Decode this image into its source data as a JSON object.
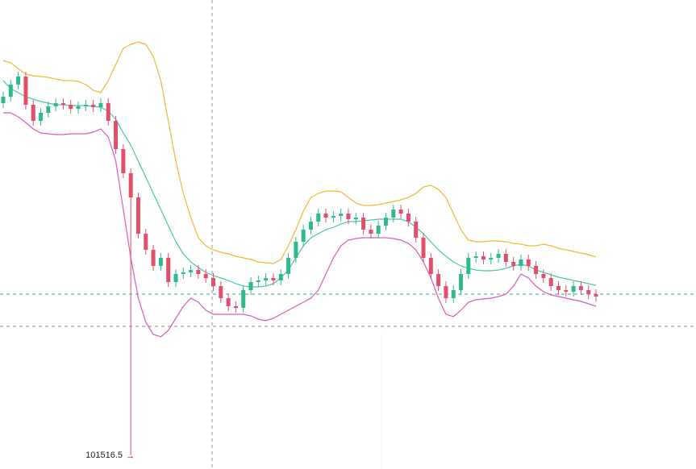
{
  "chart_data": {
    "type": "candlestick",
    "up_color": "#2fb98c",
    "down_color": "#e0506a",
    "ylim": [
      101482,
      102646
    ],
    "open": [
      102390,
      102406,
      102436,
      102456,
      102386,
      102346,
      102366,
      102382,
      102390,
      102386,
      102376,
      102382,
      102386,
      102380,
      102390,
      102346,
      102276,
      102216,
      102156,
      102066,
      102026,
      101986,
      102006,
      101946,
      101966,
      101970,
      101976,
      101966,
      101956,
      101936,
      101906,
      101886,
      101882,
      101926,
      101946,
      101950,
      101956,
      101950,
      101966,
      102006,
      102046,
      102076,
      102096,
      102116,
      102106,
      102110,
      102116,
      102102,
      102106,
      102076,
      102066,
      102086,
      102106,
      102126,
      102116,
      102096,
      102056,
      102006,
      101966,
      101936,
      101906,
      101926,
      101966,
      102006,
      102010,
      102002,
      102006,
      102016,
      101996,
      101986,
      102002,
      101986,
      101966,
      101956,
      101936,
      101926,
      101922,
      101936,
      101926,
      101916
    ],
    "high": [
      102418,
      102448,
      102468,
      102468,
      102398,
      102378,
      102394,
      102402,
      102402,
      102398,
      102394,
      102398,
      102398,
      102402,
      102402,
      102358,
      102288,
      102228,
      102168,
      102078,
      102038,
      102018,
      102018,
      101978,
      101982,
      101988,
      101988,
      101978,
      101968,
      101948,
      101918,
      101898,
      101938,
      101958,
      101962,
      101968,
      101968,
      101978,
      102018,
      102058,
      102088,
      102108,
      102128,
      102128,
      102122,
      102128,
      102128,
      102118,
      102118,
      102088,
      102098,
      102118,
      102138,
      102138,
      102128,
      102108,
      102068,
      102018,
      101978,
      101948,
      101938,
      101978,
      102018,
      102022,
      102022,
      102018,
      102028,
      102028,
      102008,
      102014,
      102014,
      101998,
      101978,
      101968,
      101948,
      101938,
      101948,
      101948,
      101938,
      101928
    ],
    "low": [
      102378,
      102394,
      102424,
      102374,
      102334,
      102334,
      102354,
      102370,
      102374,
      102364,
      102364,
      102370,
      102368,
      102368,
      102334,
      102264,
      102204,
      101516.5,
      102054,
      102014,
      101974,
      101974,
      101934,
      101934,
      101954,
      101958,
      101954,
      101944,
      101924,
      101894,
      101874,
      101870,
      101870,
      101914,
      101934,
      101938,
      101938,
      101938,
      101954,
      101994,
      102034,
      102064,
      102084,
      102094,
      102094,
      102098,
      102090,
      102090,
      102064,
      102054,
      102054,
      102074,
      102094,
      102104,
      102084,
      102044,
      101994,
      101954,
      101924,
      101894,
      101894,
      101914,
      101954,
      101994,
      101990,
      101990,
      101994,
      101984,
      101974,
      101974,
      101974,
      101954,
      101944,
      101924,
      101914,
      101910,
      101910,
      101914,
      101904,
      101898
    ],
    "close": [
      102406,
      102436,
      102456,
      102386,
      102346,
      102366,
      102382,
      102390,
      102386,
      102376,
      102382,
      102386,
      102380,
      102390,
      102346,
      102276,
      102216,
      102156,
      102066,
      102026,
      101986,
      102006,
      101946,
      101966,
      101970,
      101976,
      101966,
      101956,
      101936,
      101906,
      101886,
      101882,
      101926,
      101946,
      101950,
      101956,
      101950,
      101966,
      102006,
      102046,
      102076,
      102096,
      102116,
      102106,
      102110,
      102116,
      102102,
      102106,
      102076,
      102066,
      102086,
      102106,
      102126,
      102116,
      102096,
      102056,
      102006,
      101966,
      101936,
      101906,
      101926,
      101966,
      102006,
      102010,
      102002,
      102006,
      102016,
      101996,
      101986,
      102002,
      101986,
      101966,
      101956,
      101936,
      101926,
      101922,
      101936,
      101926,
      101916,
      101910
    ],
    "series": [
      {
        "color": "#f2b733",
        "values": [
          102496,
          102490,
          102476,
          102462,
          102458,
          102456,
          102454,
          102450,
          102446,
          102446,
          102444,
          102436,
          102422,
          102416,
          102446,
          102486,
          102526,
          102536,
          102542,
          102536,
          102506,
          102446,
          102346,
          102246,
          102166,
          102106,
          102056,
          102036,
          102026,
          102020,
          102016,
          102010,
          102006,
          102002,
          101996,
          101994,
          101992,
          102002,
          102036,
          102076,
          102122,
          102156,
          102166,
          102172,
          102172,
          102170,
          102156,
          102142,
          102136,
          102136,
          102138,
          102142,
          102146,
          102150,
          102156,
          102166,
          102182,
          102186,
          102176,
          102156,
          102116,
          102076,
          102050,
          102046,
          102046,
          102048,
          102048,
          102046,
          102042,
          102040,
          102036,
          102036,
          102040,
          102036,
          102030,
          102026,
          102022,
          102018,
          102014,
          102008
        ]
      },
      {
        "color": "#45c9a6",
        "values": [
          102446,
          102426,
          102416,
          102406,
          102400,
          102394,
          102390,
          102386,
          102386,
          102384,
          102384,
          102384,
          102382,
          102380,
          102370,
          102350,
          102316,
          102286,
          102246,
          102206,
          102166,
          102126,
          102086,
          102046,
          102016,
          101996,
          101982,
          101970,
          101962,
          101956,
          101950,
          101942,
          101936,
          101934,
          101934,
          101936,
          101942,
          101956,
          101976,
          102006,
          102036,
          102056,
          102066,
          102076,
          102082,
          102090,
          102096,
          102096,
          102098,
          102100,
          102102,
          102102,
          102102,
          102102,
          102096,
          102082,
          102066,
          102046,
          102026,
          102010,
          101996,
          101986,
          101980,
          101976,
          101974,
          101974,
          101976,
          101980,
          101986,
          101990,
          101986,
          101976,
          101970,
          101964,
          101958,
          101954,
          101950,
          101946,
          101942,
          101938
        ]
      },
      {
        "color": "#d85cb6",
        "values": [
          102366,
          102366,
          102356,
          102342,
          102326,
          102316,
          102314,
          102312,
          102312,
          102314,
          102314,
          102314,
          102318,
          102326,
          102306,
          102246,
          102126,
          102006,
          101906,
          101846,
          101816,
          101810,
          101826,
          101856,
          101886,
          101906,
          101896,
          101876,
          101866,
          101866,
          101866,
          101866,
          101866,
          101862,
          101854,
          101850,
          101856,
          101866,
          101876,
          101886,
          101896,
          101906,
          101926,
          101966,
          102006,
          102036,
          102050,
          102054,
          102056,
          102056,
          102056,
          102056,
          102054,
          102050,
          102042,
          102026,
          101996,
          101956,
          101906,
          101866,
          101860,
          101876,
          101896,
          101902,
          101904,
          101906,
          101910,
          101916,
          101936,
          101966,
          101956,
          101936,
          101922,
          101914,
          101910,
          101906,
          101902,
          101898,
          101892,
          101886
        ]
      }
    ]
  }
}
